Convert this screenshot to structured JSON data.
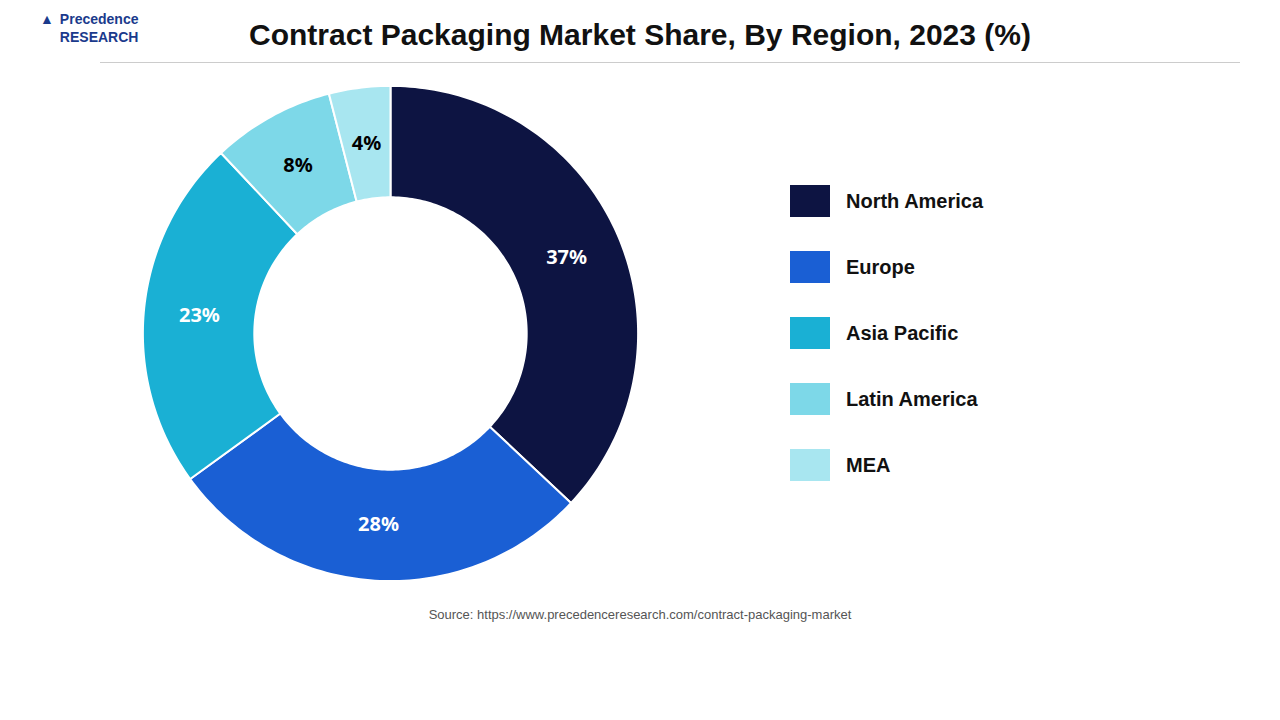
{
  "chart_data": {
    "type": "pie",
    "title": "Contract Packaging Market Share, By Region, 2023 (%)",
    "categories": [
      "North America",
      "Europe",
      "Asia Pacific",
      "Latin America",
      "MEA"
    ],
    "values": [
      37,
      28,
      23,
      8,
      4
    ],
    "value_labels": [
      "37%",
      "28%",
      "23%",
      "8%",
      "4%"
    ],
    "colors": [
      "#0d1442",
      "#1a5fd4",
      "#1ab0d4",
      "#7dd8e8",
      "#a8e6f0"
    ],
    "data_labels": true,
    "legend": "right",
    "annotations": [
      "▲",
      "Precedence\nRESEARCH",
      "Source: https://www.precedenceresearch.com/contract-packaging-market"
    ]
  }
}
